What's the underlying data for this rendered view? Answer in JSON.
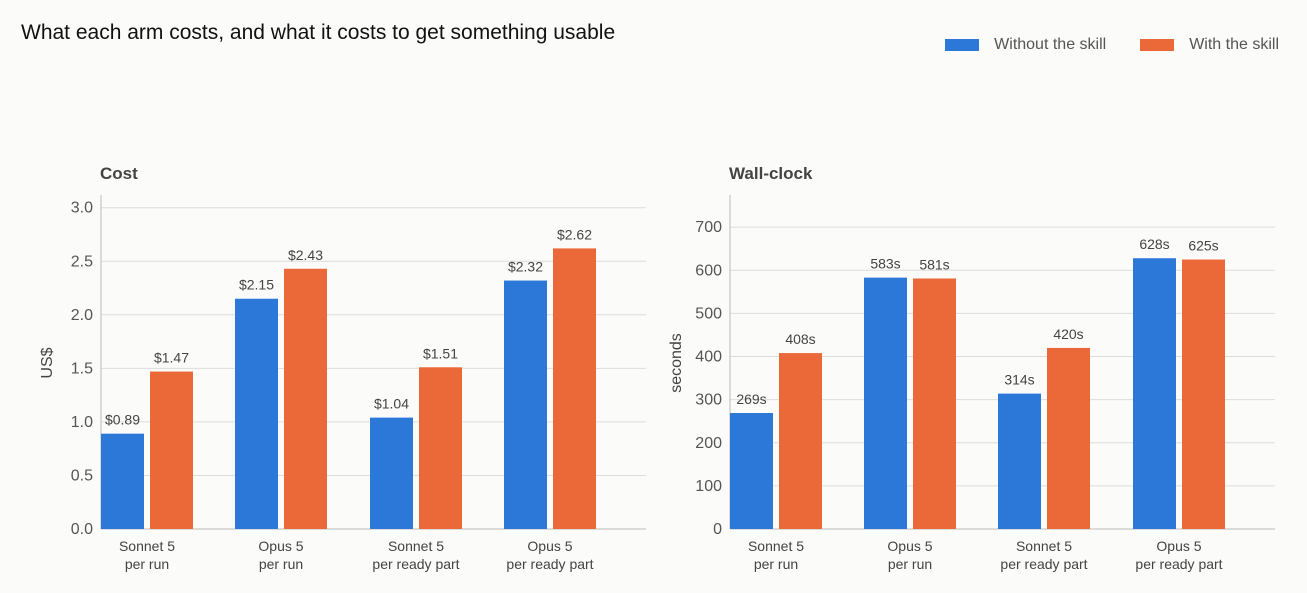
{
  "figure": {
    "title": "What each arm costs, and what it costs to get something usable"
  },
  "legend": {
    "items": [
      {
        "label": "Without the skill",
        "color": "#2b78d8"
      },
      {
        "label": "With the skill",
        "color": "#eb6938"
      }
    ]
  },
  "chart_data": [
    {
      "type": "bar",
      "title": "Cost",
      "ylabel": "US$",
      "xlabel": "",
      "ylim": [
        0,
        3.1
      ],
      "yticks": [
        0.0,
        0.5,
        1.0,
        1.5,
        2.0,
        2.5,
        3.0
      ],
      "ytick_labels": [
        "0.0",
        "0.5",
        "1.0",
        "1.5",
        "2.0",
        "2.5",
        "3.0"
      ],
      "categories": [
        [
          "Sonnet 5",
          "per run"
        ],
        [
          "Opus 5",
          "per run"
        ],
        [
          "Sonnet 5",
          "per ready part"
        ],
        [
          "Opus 5",
          "per ready part"
        ]
      ],
      "series": [
        {
          "name": "Without the skill",
          "color": "#2b78d8",
          "values": [
            0.89,
            2.15,
            1.04,
            2.32
          ],
          "labels": [
            "$0.89",
            "$2.15",
            "$1.04",
            "$2.32"
          ]
        },
        {
          "name": "With the skill",
          "color": "#eb6938",
          "values": [
            1.47,
            2.43,
            1.51,
            2.62
          ],
          "labels": [
            "$1.47",
            "$2.43",
            "$1.51",
            "$2.62"
          ]
        }
      ],
      "grid": true,
      "legend_position": "top-right"
    },
    {
      "type": "bar",
      "title": "Wall-clock",
      "ylabel": "seconds",
      "xlabel": "",
      "ylim": [
        0,
        770
      ],
      "yticks": [
        0,
        100,
        200,
        300,
        400,
        500,
        600,
        700
      ],
      "ytick_labels": [
        "0",
        "100",
        "200",
        "300",
        "400",
        "500",
        "600",
        "700"
      ],
      "categories": [
        [
          "Sonnet 5",
          "per run"
        ],
        [
          "Opus 5",
          "per run"
        ],
        [
          "Sonnet 5",
          "per ready part"
        ],
        [
          "Opus 5",
          "per ready part"
        ]
      ],
      "series": [
        {
          "name": "Without the skill",
          "color": "#2b78d8",
          "values": [
            269,
            583,
            314,
            628
          ],
          "labels": [
            "269s",
            "583s",
            "314s",
            "628s"
          ]
        },
        {
          "name": "With the skill",
          "color": "#eb6938",
          "values": [
            408,
            581,
            420,
            625
          ],
          "labels": [
            "408s",
            "581s",
            "420s",
            "625s"
          ]
        }
      ],
      "grid": true,
      "legend_position": "top-right"
    }
  ]
}
